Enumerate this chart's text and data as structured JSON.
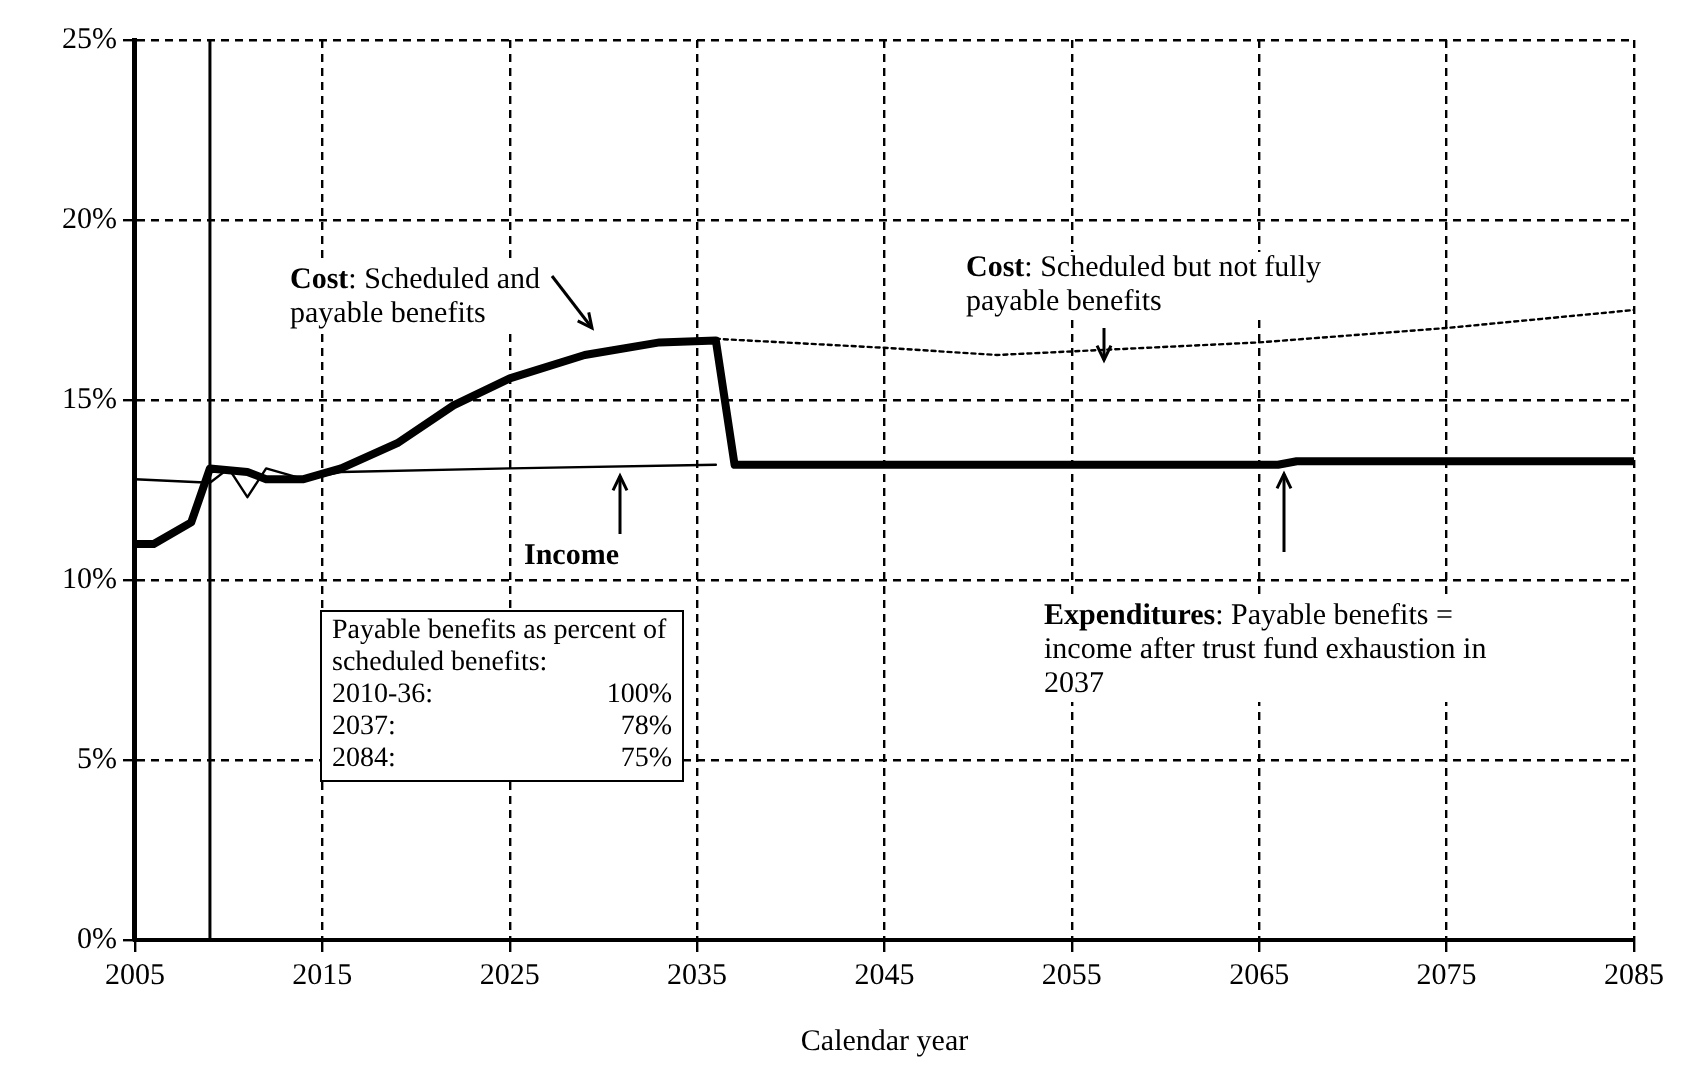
{
  "chart_data": {
    "type": "line",
    "xlabel": "Calendar year",
    "xlim": [
      2005,
      2085
    ],
    "xticks": [
      2005,
      2015,
      2025,
      2035,
      2045,
      2055,
      2065,
      2075,
      2085
    ],
    "ylim": [
      0,
      25
    ],
    "yticks": [
      {
        "value": 0,
        "label": "0%"
      },
      {
        "value": 5,
        "label": "5%"
      },
      {
        "value": 10,
        "label": "10%"
      },
      {
        "value": 15,
        "label": "15%"
      },
      {
        "value": 20,
        "label": "20%"
      },
      {
        "value": 25,
        "label": "25%"
      }
    ],
    "grid": true,
    "marker": "none",
    "series": [
      {
        "color": "#000000",
        "line_style": "solid",
        "x": [
          2005,
          2009,
          2010,
          2011,
          2012,
          2014,
          2016,
          2025,
          2036
        ],
        "values": [
          12.8,
          12.7,
          13.1,
          12.3,
          13.1,
          12.8,
          13.0,
          13.1,
          13.2
        ]
      },
      {
        "color": "#000000",
        "line_style": "dotted",
        "x": [
          2036,
          2045,
          2051,
          2055,
          2065,
          2075,
          2085
        ],
        "values": [
          16.7,
          16.45,
          16.25,
          16.35,
          16.6,
          17.0,
          17.5
        ]
      },
      {
        "color": "#000000",
        "line_style": "solid",
        "x": [
          2005,
          2006,
          2008,
          2009,
          2011,
          2012,
          2014,
          2016,
          2019,
          2022,
          2025,
          2029,
          2033,
          2036,
          2037,
          2066,
          2067,
          2085
        ],
        "values": [
          11.0,
          11.0,
          11.6,
          13.1,
          13.0,
          12.8,
          12.8,
          13.1,
          13.8,
          14.85,
          15.6,
          16.25,
          16.6,
          16.65,
          13.2,
          13.2,
          13.3,
          13.3
        ]
      }
    ],
    "ref_lines": [
      {
        "axis": "x",
        "value": 2009,
        "color": "#000000",
        "line_style": "solid"
      }
    ],
    "annotations": [
      "Cost: Scheduled and payable benefits",
      "Cost: Scheduled but not fully payable benefits",
      "Income",
      "Expenditures: Payable benefits = income after trust fund exhaustion in 2037",
      "Payable benefits as percent of scheduled benefits:",
      "2010-36: 100%",
      "2037: 78%",
      "2084: 75%"
    ]
  }
}
